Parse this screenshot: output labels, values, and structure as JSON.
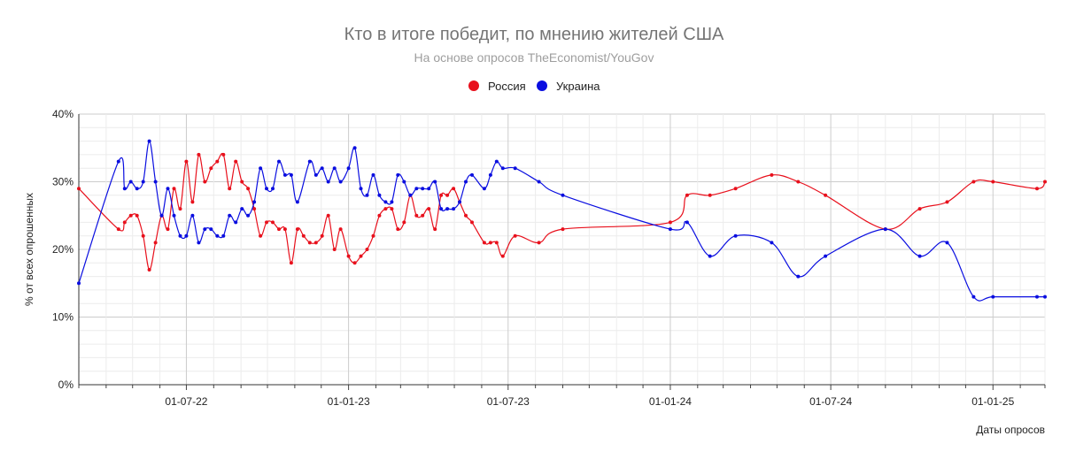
{
  "chart_data": {
    "type": "line",
    "title": "Кто в итоге победит, по мнению жителей США",
    "subtitle": "На основе опросов TheEconomist/YouGov",
    "xlabel": "Даты опросов",
    "ylabel": "% от всех опрошенных",
    "ylim": [
      0,
      0.4
    ],
    "yticks": [
      {
        "value": 0,
        "label": "0%"
      },
      {
        "value": 0.1,
        "label": "10%"
      },
      {
        "value": 0.2,
        "label": "20%"
      },
      {
        "value": 0.3,
        "label": "30%"
      },
      {
        "value": 0.4,
        "label": "40%"
      }
    ],
    "xlim": [
      "2022-03-01",
      "2025-03-01"
    ],
    "xticks": [
      {
        "date": "2022-07-01",
        "label": "01-07-22"
      },
      {
        "date": "2023-01-01",
        "label": "01-01-23"
      },
      {
        "date": "2023-07-01",
        "label": "01-07-23"
      },
      {
        "date": "2024-01-01",
        "label": "01-01-24"
      },
      {
        "date": "2024-07-01",
        "label": "01-07-24"
      },
      {
        "date": "2025-01-01",
        "label": "01-01-25"
      }
    ],
    "legend_position": "top",
    "grid": true,
    "series": [
      {
        "name": "Россия",
        "color": "#e8101c",
        "points": [
          [
            "2022-03-01",
            0.29
          ],
          [
            "2022-04-15",
            0.23
          ],
          [
            "2022-04-22",
            0.24
          ],
          [
            "2022-04-29",
            0.25
          ],
          [
            "2022-05-06",
            0.25
          ],
          [
            "2022-05-13",
            0.22
          ],
          [
            "2022-05-20",
            0.17
          ],
          [
            "2022-05-27",
            0.21
          ],
          [
            "2022-06-03",
            0.25
          ],
          [
            "2022-06-10",
            0.23
          ],
          [
            "2022-06-17",
            0.29
          ],
          [
            "2022-06-24",
            0.26
          ],
          [
            "2022-07-01",
            0.33
          ],
          [
            "2022-07-08",
            0.27
          ],
          [
            "2022-07-15",
            0.34
          ],
          [
            "2022-07-22",
            0.3
          ],
          [
            "2022-07-29",
            0.32
          ],
          [
            "2022-08-05",
            0.33
          ],
          [
            "2022-08-12",
            0.34
          ],
          [
            "2022-08-19",
            0.29
          ],
          [
            "2022-08-26",
            0.33
          ],
          [
            "2022-09-02",
            0.3
          ],
          [
            "2022-09-09",
            0.29
          ],
          [
            "2022-09-16",
            0.26
          ],
          [
            "2022-09-23",
            0.22
          ],
          [
            "2022-09-30",
            0.24
          ],
          [
            "2022-10-07",
            0.24
          ],
          [
            "2022-10-14",
            0.23
          ],
          [
            "2022-10-21",
            0.23
          ],
          [
            "2022-10-28",
            0.18
          ],
          [
            "2022-11-04",
            0.23
          ],
          [
            "2022-11-11",
            0.22
          ],
          [
            "2022-11-18",
            0.21
          ],
          [
            "2022-11-25",
            0.21
          ],
          [
            "2022-12-02",
            0.22
          ],
          [
            "2022-12-09",
            0.25
          ],
          [
            "2022-12-16",
            0.2
          ],
          [
            "2022-12-23",
            0.23
          ],
          [
            "2023-01-01",
            0.19
          ],
          [
            "2023-01-08",
            0.18
          ],
          [
            "2023-01-15",
            0.19
          ],
          [
            "2023-01-22",
            0.2
          ],
          [
            "2023-01-29",
            0.22
          ],
          [
            "2023-02-05",
            0.25
          ],
          [
            "2023-02-12",
            0.26
          ],
          [
            "2023-02-19",
            0.26
          ],
          [
            "2023-02-26",
            0.23
          ],
          [
            "2023-03-05",
            0.24
          ],
          [
            "2023-03-12",
            0.28
          ],
          [
            "2023-03-19",
            0.25
          ],
          [
            "2023-03-26",
            0.25
          ],
          [
            "2023-04-02",
            0.26
          ],
          [
            "2023-04-09",
            0.23
          ],
          [
            "2023-04-16",
            0.28
          ],
          [
            "2023-04-23",
            0.28
          ],
          [
            "2023-04-30",
            0.29
          ],
          [
            "2023-05-07",
            0.27
          ],
          [
            "2023-05-14",
            0.25
          ],
          [
            "2023-05-21",
            0.24
          ],
          [
            "2023-06-04",
            0.21
          ],
          [
            "2023-06-11",
            0.21
          ],
          [
            "2023-06-18",
            0.21
          ],
          [
            "2023-06-25",
            0.19
          ],
          [
            "2023-07-09",
            0.22
          ],
          [
            "2023-08-05",
            0.21
          ],
          [
            "2023-09-01",
            0.23
          ],
          [
            "2024-01-01",
            0.24
          ],
          [
            "2024-01-20",
            0.28
          ],
          [
            "2024-02-15",
            0.28
          ],
          [
            "2024-03-15",
            0.29
          ],
          [
            "2024-04-25",
            0.31
          ],
          [
            "2024-05-25",
            0.3
          ],
          [
            "2024-06-25",
            0.28
          ],
          [
            "2024-09-01",
            0.23
          ],
          [
            "2024-10-10",
            0.26
          ],
          [
            "2024-11-10",
            0.27
          ],
          [
            "2024-12-10",
            0.3
          ],
          [
            "2025-01-01",
            0.3
          ],
          [
            "2025-02-20",
            0.29
          ],
          [
            "2025-03-01",
            0.3
          ]
        ]
      },
      {
        "name": "Украина",
        "color": "#0a0ee0",
        "points": [
          [
            "2022-03-01",
            0.15
          ],
          [
            "2022-04-15",
            0.33
          ],
          [
            "2022-04-22",
            0.29
          ],
          [
            "2022-04-29",
            0.3
          ],
          [
            "2022-05-06",
            0.29
          ],
          [
            "2022-05-13",
            0.3
          ],
          [
            "2022-05-20",
            0.36
          ],
          [
            "2022-05-27",
            0.3
          ],
          [
            "2022-06-03",
            0.25
          ],
          [
            "2022-06-10",
            0.29
          ],
          [
            "2022-06-17",
            0.25
          ],
          [
            "2022-06-24",
            0.22
          ],
          [
            "2022-07-01",
            0.22
          ],
          [
            "2022-07-08",
            0.25
          ],
          [
            "2022-07-15",
            0.21
          ],
          [
            "2022-07-22",
            0.23
          ],
          [
            "2022-07-29",
            0.23
          ],
          [
            "2022-08-05",
            0.22
          ],
          [
            "2022-08-12",
            0.22
          ],
          [
            "2022-08-19",
            0.25
          ],
          [
            "2022-08-26",
            0.24
          ],
          [
            "2022-09-02",
            0.26
          ],
          [
            "2022-09-09",
            0.25
          ],
          [
            "2022-09-16",
            0.27
          ],
          [
            "2022-09-23",
            0.32
          ],
          [
            "2022-09-30",
            0.29
          ],
          [
            "2022-10-07",
            0.29
          ],
          [
            "2022-10-14",
            0.33
          ],
          [
            "2022-10-21",
            0.31
          ],
          [
            "2022-10-28",
            0.31
          ],
          [
            "2022-11-04",
            0.27
          ],
          [
            "2022-11-18",
            0.33
          ],
          [
            "2022-11-25",
            0.31
          ],
          [
            "2022-12-02",
            0.32
          ],
          [
            "2022-12-09",
            0.3
          ],
          [
            "2022-12-16",
            0.32
          ],
          [
            "2022-12-23",
            0.3
          ],
          [
            "2023-01-01",
            0.32
          ],
          [
            "2023-01-08",
            0.35
          ],
          [
            "2023-01-15",
            0.29
          ],
          [
            "2023-01-22",
            0.28
          ],
          [
            "2023-01-29",
            0.31
          ],
          [
            "2023-02-05",
            0.28
          ],
          [
            "2023-02-12",
            0.27
          ],
          [
            "2023-02-19",
            0.27
          ],
          [
            "2023-02-26",
            0.31
          ],
          [
            "2023-03-05",
            0.3
          ],
          [
            "2023-03-12",
            0.28
          ],
          [
            "2023-03-19",
            0.29
          ],
          [
            "2023-03-26",
            0.29
          ],
          [
            "2023-04-02",
            0.29
          ],
          [
            "2023-04-09",
            0.3
          ],
          [
            "2023-04-16",
            0.26
          ],
          [
            "2023-04-23",
            0.26
          ],
          [
            "2023-04-30",
            0.26
          ],
          [
            "2023-05-07",
            0.27
          ],
          [
            "2023-05-14",
            0.3
          ],
          [
            "2023-05-21",
            0.31
          ],
          [
            "2023-06-04",
            0.29
          ],
          [
            "2023-06-11",
            0.31
          ],
          [
            "2023-06-18",
            0.33
          ],
          [
            "2023-06-25",
            0.32
          ],
          [
            "2023-07-09",
            0.32
          ],
          [
            "2023-08-05",
            0.3
          ],
          [
            "2023-09-01",
            0.28
          ],
          [
            "2024-01-01",
            0.23
          ],
          [
            "2024-01-20",
            0.24
          ],
          [
            "2024-02-15",
            0.19
          ],
          [
            "2024-03-15",
            0.22
          ],
          [
            "2024-04-25",
            0.21
          ],
          [
            "2024-05-25",
            0.16
          ],
          [
            "2024-06-25",
            0.19
          ],
          [
            "2024-09-01",
            0.23
          ],
          [
            "2024-10-10",
            0.19
          ],
          [
            "2024-11-10",
            0.21
          ],
          [
            "2024-12-10",
            0.13
          ],
          [
            "2025-01-01",
            0.13
          ],
          [
            "2025-02-20",
            0.13
          ],
          [
            "2025-03-01",
            0.13
          ]
        ]
      }
    ]
  }
}
